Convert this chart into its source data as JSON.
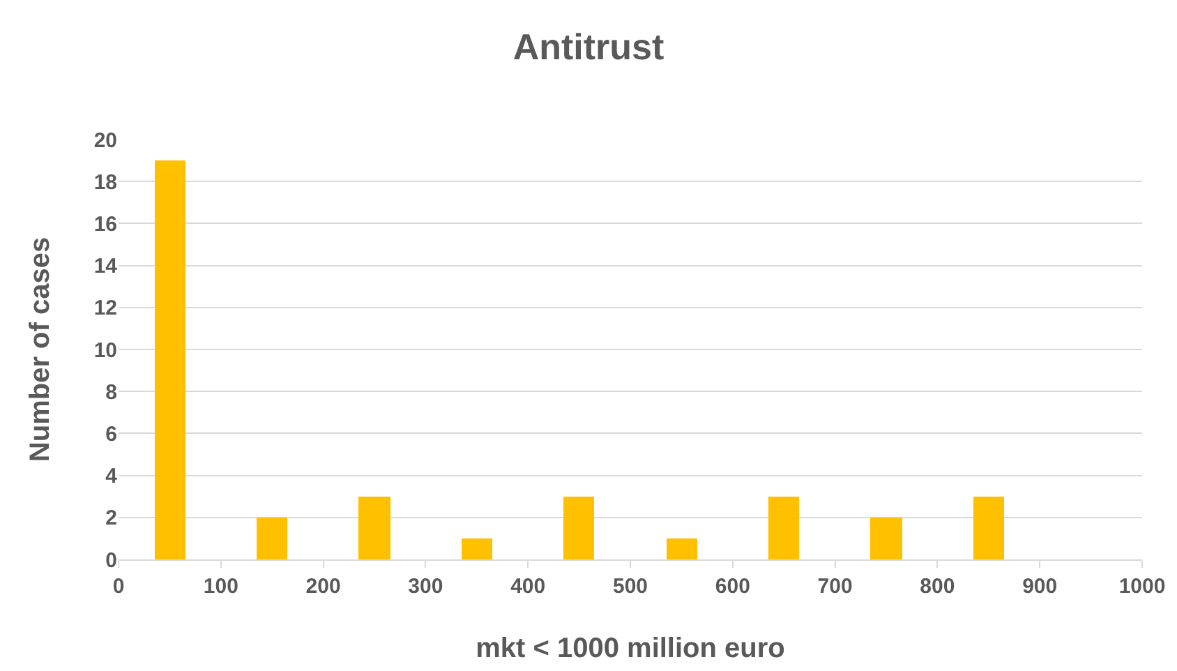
{
  "chart_data": {
    "type": "bar",
    "title": "Antitrust",
    "xlabel": "mkt < 1000 million euro",
    "ylabel": "Number of cases",
    "x": [
      50,
      150,
      250,
      350,
      450,
      550,
      650,
      750,
      850,
      950
    ],
    "values": [
      19,
      2,
      3,
      1,
      3,
      1,
      3,
      2,
      3,
      0
    ],
    "color": "#ffc000",
    "xlim": [
      0,
      1000
    ],
    "xticks": [
      0,
      100,
      200,
      300,
      400,
      500,
      600,
      700,
      800,
      900,
      1000
    ],
    "ylim": [
      0,
      20
    ],
    "yticks": [
      0,
      2,
      4,
      6,
      8,
      10,
      12,
      14,
      16,
      18,
      20
    ],
    "grid": "y"
  }
}
